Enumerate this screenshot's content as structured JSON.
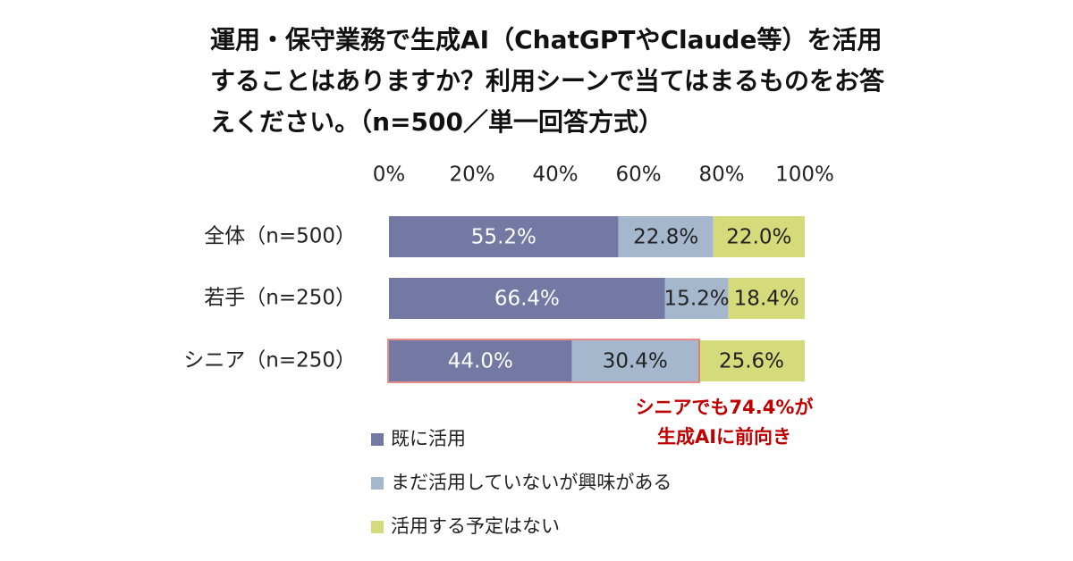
{
  "chart_data": {
    "type": "stacked-barh",
    "title": "運用・保守業務で生成AI（ChatGPTやClaude等）を活用することはありますか？利用シーンで当てはまるものをお答えください。（n=500／単一回答方式）",
    "categories": [
      "全体（n=500）",
      "若手（n=250）",
      "シニア（n=250）"
    ],
    "series": [
      {
        "name": "既に活用",
        "color": "#7479a4",
        "values": [
          55.2,
          66.4,
          44.0
        ],
        "value_labels": [
          "55.2%",
          "66.4%",
          "44.0%"
        ]
      },
      {
        "name": "まだ活用していないが興味がある",
        "color": "#a4b7cc",
        "values": [
          22.8,
          15.2,
          30.4
        ],
        "value_labels": [
          "22.8%",
          "15.2%",
          "30.4%"
        ]
      },
      {
        "name": "活用する予定はない",
        "color": "#d5da7a",
        "values": [
          22.0,
          18.4,
          25.6
        ],
        "value_labels": [
          "22.0%",
          "18.4%",
          "25.6%"
        ]
      }
    ],
    "xlim": [
      0,
      100
    ],
    "xticks": [
      {
        "value": 0,
        "label": "0%"
      },
      {
        "value": 20,
        "label": "20%"
      },
      {
        "value": 40,
        "label": "40%"
      },
      {
        "value": 60,
        "label": "60%"
      },
      {
        "value": 80,
        "label": "80%"
      },
      {
        "value": 100,
        "label": "100%"
      }
    ],
    "annotation": [
      "シニアでも74.4%が",
      "生成AIに前向き"
    ]
  }
}
